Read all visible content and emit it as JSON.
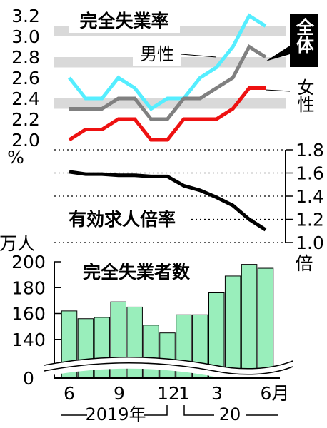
{
  "chart_data": [
    {
      "type": "line",
      "title": "完全失業率",
      "unit": "%",
      "yticks": [
        "3.2",
        "3.0",
        "2.8",
        "2.6",
        "2.4",
        "2.2",
        "2.0"
      ],
      "ylim": [
        2.0,
        3.2
      ],
      "grid": "alternating gray bands",
      "x": [
        "2019-06",
        "2019-07",
        "2019-08",
        "2019-09",
        "2019-10",
        "2019-11",
        "2019-12",
        "2020-01",
        "2020-02",
        "2020-03",
        "2020-04",
        "2020-05",
        "2020-06"
      ],
      "series": [
        {
          "name": "男性",
          "color": "#55eeff",
          "values": [
            2.6,
            2.4,
            2.4,
            2.6,
            2.5,
            2.3,
            2.4,
            2.4,
            2.6,
            2.7,
            2.9,
            3.2,
            3.1
          ]
        },
        {
          "name": "全体",
          "color": "#808080",
          "values": [
            2.3,
            2.3,
            2.3,
            2.4,
            2.4,
            2.2,
            2.2,
            2.4,
            2.4,
            2.5,
            2.6,
            2.9,
            2.8
          ]
        },
        {
          "name": "女性",
          "color": "#ee1111",
          "values": [
            2.0,
            2.1,
            2.1,
            2.2,
            2.2,
            2.0,
            2.0,
            2.2,
            2.2,
            2.2,
            2.3,
            2.5,
            2.5
          ]
        }
      ]
    },
    {
      "type": "line",
      "title": "有効求人倍率",
      "unit": "倍",
      "yticks": [
        "1.8",
        "1.6",
        "1.4",
        "1.2",
        "1.0"
      ],
      "ylim": [
        1.0,
        1.8
      ],
      "grid": "dotted horizontal lines",
      "x": [
        "2019-06",
        "2019-07",
        "2019-08",
        "2019-09",
        "2019-10",
        "2019-11",
        "2019-12",
        "2020-01",
        "2020-02",
        "2020-03",
        "2020-04",
        "2020-05",
        "2020-06"
      ],
      "series": [
        {
          "color": "#000000",
          "values": [
            1.61,
            1.59,
            1.59,
            1.58,
            1.58,
            1.57,
            1.57,
            1.49,
            1.45,
            1.39,
            1.32,
            1.2,
            1.11
          ]
        }
      ]
    },
    {
      "type": "bar",
      "title": "完全失業者数",
      "unit": "万人",
      "yticks": [
        "200",
        "180",
        "160",
        "140",
        "0"
      ],
      "axis_break": true,
      "ylim": [
        120,
        200
      ],
      "color": "#99eebb",
      "categories": [
        "2019-06",
        "2019-07",
        "2019-08",
        "2019-09",
        "2019-10",
        "2019-11",
        "2019-12",
        "2020-01",
        "2020-02",
        "2020-03",
        "2020-04",
        "2020-05",
        "2020-06"
      ],
      "values": [
        162,
        156,
        157,
        169,
        165,
        151,
        145,
        159,
        159,
        176,
        189,
        198,
        195
      ]
    }
  ],
  "x_axis": {
    "tick_labels": [
      "6",
      "9",
      "12",
      "1",
      "3",
      "6月"
    ],
    "year_2019": "2019年",
    "year_2020": "20"
  }
}
